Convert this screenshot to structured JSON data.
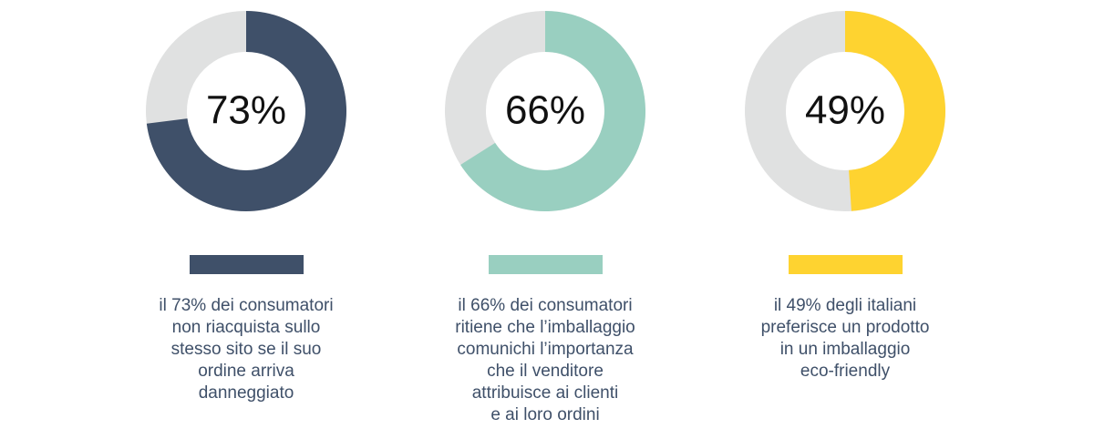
{
  "chart_data": [
    {
      "type": "donut",
      "values": [
        73
      ],
      "value_labels": [
        "73%"
      ],
      "color": "#3f5069",
      "caption": [
        "il 73% dei consumatori",
        "non riacquista sullo",
        "stesso sito se il suo",
        "ordine arriva",
        "danneggiato"
      ]
    },
    {
      "type": "donut",
      "values": [
        66
      ],
      "value_labels": [
        "66%"
      ],
      "color": "#99cfc0",
      "caption": [
        "il 66% dei consumatori",
        "ritiene che l’imballaggio",
        "comunichi l’importanza",
        "che il venditore",
        "attribuisce ai clienti",
        "e ai loro ordini"
      ]
    },
    {
      "type": "donut",
      "values": [
        49
      ],
      "value_labels": [
        "49%"
      ],
      "color": "#fed330",
      "caption": [
        "il 49% degli italiani",
        "preferisce un prodotto",
        "in un imballaggio",
        "eco-friendly"
      ]
    }
  ]
}
